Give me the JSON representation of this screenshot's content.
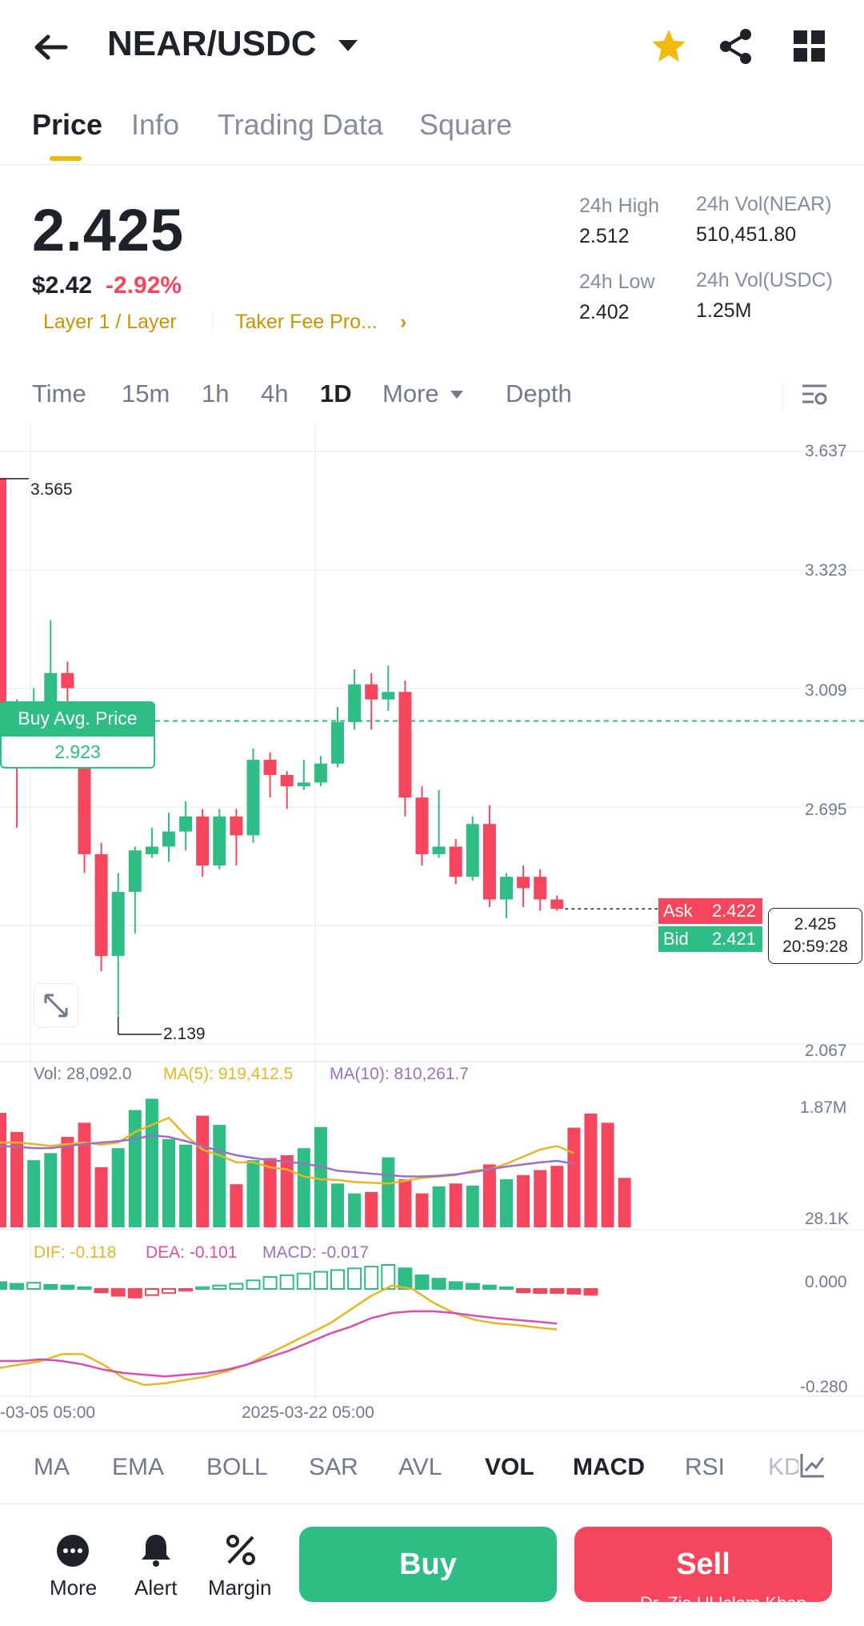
{
  "header": {
    "pair": "NEAR/USDC",
    "back_icon": "back-arrow-icon",
    "star_icon": "star-icon",
    "share_icon": "share-icon",
    "grid_icon": "grid-icon",
    "star_color": "#f0b90b"
  },
  "tabs": [
    {
      "label": "Price",
      "active": true
    },
    {
      "label": "Info",
      "active": false
    },
    {
      "label": "Trading Data",
      "active": false
    },
    {
      "label": "Square",
      "active": false
    }
  ],
  "ticker": {
    "price": "2.425",
    "usd_price": "$2.42",
    "change": "-2.92%",
    "tag1": "Layer 1 / Layer",
    "tag2": "Taker Fee Pro...",
    "tag_arrow": "›",
    "high_label": "24h High",
    "high": "2.512",
    "low_label": "24h Low",
    "low": "2.402",
    "vol_base_label": "24h Vol(NEAR)",
    "vol_base": "510,451.80",
    "vol_quote_label": "24h Vol(USDC)",
    "vol_quote": "1.25M"
  },
  "timeframes": [
    "Time",
    "15m",
    "1h",
    "4h",
    "1D",
    "More",
    "Depth"
  ],
  "timeframe_active": "1D",
  "chart_data": {
    "type": "candlestick",
    "y_ticks": [
      "3.637",
      "3.323",
      "3.009",
      "2.695",
      "2.067"
    ],
    "ylim": [
      2.067,
      3.637
    ],
    "high_marker": "3.565",
    "low_marker": "2.139",
    "buy_avg_label": "Buy Avg. Price",
    "buy_avg_value": "2.923",
    "ask_label": "Ask",
    "ask": "2.422",
    "bid_label": "Bid",
    "bid": "2.421",
    "current_price": "2.425",
    "countdown": "20:59:28",
    "x_labels": [
      "-03-05 05:00",
      "2025-03-22 05:00"
    ],
    "candles": [
      {
        "o": 3.565,
        "c": 2.95,
        "h": 3.565,
        "l": 2.82
      },
      {
        "o": 2.96,
        "c": 2.87,
        "h": 2.98,
        "l": 2.64
      },
      {
        "o": 2.87,
        "c": 2.92,
        "h": 3.01,
        "l": 2.86
      },
      {
        "o": 2.93,
        "c": 3.05,
        "h": 3.19,
        "l": 2.9
      },
      {
        "o": 3.05,
        "c": 3.01,
        "h": 3.08,
        "l": 2.94
      },
      {
        "o": 2.92,
        "c": 2.57,
        "h": 2.95,
        "l": 2.52
      },
      {
        "o": 2.57,
        "c": 2.3,
        "h": 2.6,
        "l": 2.26
      },
      {
        "o": 2.3,
        "c": 2.47,
        "h": 2.52,
        "l": 2.14
      },
      {
        "o": 2.47,
        "c": 2.58,
        "h": 2.59,
        "l": 2.36
      },
      {
        "o": 2.57,
        "c": 2.59,
        "h": 2.64,
        "l": 2.56
      },
      {
        "o": 2.59,
        "c": 2.63,
        "h": 2.68,
        "l": 2.55
      },
      {
        "o": 2.63,
        "c": 2.67,
        "h": 2.71,
        "l": 2.58
      },
      {
        "o": 2.67,
        "c": 2.54,
        "h": 2.69,
        "l": 2.51
      },
      {
        "o": 2.54,
        "c": 2.67,
        "h": 2.69,
        "l": 2.53
      },
      {
        "o": 2.67,
        "c": 2.62,
        "h": 2.69,
        "l": 2.54
      },
      {
        "o": 2.62,
        "c": 2.82,
        "h": 2.85,
        "l": 2.6
      },
      {
        "o": 2.82,
        "c": 2.78,
        "h": 2.84,
        "l": 2.72
      },
      {
        "o": 2.78,
        "c": 2.75,
        "h": 2.79,
        "l": 2.69
      },
      {
        "o": 2.75,
        "c": 2.76,
        "h": 2.82,
        "l": 2.74
      },
      {
        "o": 2.76,
        "c": 2.81,
        "h": 2.83,
        "l": 2.75
      },
      {
        "o": 2.81,
        "c": 2.92,
        "h": 2.96,
        "l": 2.8
      },
      {
        "o": 2.92,
        "c": 3.02,
        "h": 3.06,
        "l": 2.9
      },
      {
        "o": 3.02,
        "c": 2.98,
        "h": 3.05,
        "l": 2.9
      },
      {
        "o": 2.98,
        "c": 3.0,
        "h": 3.07,
        "l": 2.95
      },
      {
        "o": 3.0,
        "c": 2.72,
        "h": 3.03,
        "l": 2.67
      },
      {
        "o": 2.72,
        "c": 2.57,
        "h": 2.75,
        "l": 2.54
      },
      {
        "o": 2.57,
        "c": 2.59,
        "h": 2.74,
        "l": 2.56
      },
      {
        "o": 2.59,
        "c": 2.51,
        "h": 2.61,
        "l": 2.49
      },
      {
        "o": 2.51,
        "c": 2.65,
        "h": 2.67,
        "l": 2.5
      },
      {
        "o": 2.65,
        "c": 2.45,
        "h": 2.7,
        "l": 2.43
      },
      {
        "o": 2.45,
        "c": 2.51,
        "h": 2.52,
        "l": 2.4
      },
      {
        "o": 2.51,
        "c": 2.48,
        "h": 2.54,
        "l": 2.43
      },
      {
        "o": 2.51,
        "c": 2.45,
        "h": 2.53,
        "l": 2.42
      },
      {
        "o": 2.45,
        "c": 2.425,
        "h": 2.46,
        "l": 2.42
      }
    ]
  },
  "volume": {
    "vol_label": "Vol: 28,092.0",
    "ma5_label": "MA(5): 919,412.5",
    "ma10_label": "MA(10): 810,261.7",
    "y_top": "1.87M",
    "y_bottom": "28.1K",
    "ymax": 1.87,
    "bars": [
      1.62,
      1.35,
      0.95,
      1.05,
      1.28,
      1.48,
      0.85,
      1.12,
      1.66,
      1.82,
      1.25,
      1.17,
      1.58,
      1.45,
      0.61,
      0.95,
      0.98,
      1.02,
      1.12,
      1.42,
      0.62,
      0.48,
      0.5,
      0.99,
      0.68,
      0.48,
      0.58,
      0.62,
      0.59,
      0.89,
      0.68,
      0.74,
      0.81,
      0.87,
      1.41,
      1.61,
      1.48,
      0.7
    ],
    "ma5": [
      1.2,
      1.2,
      1.18,
      1.15,
      1.18,
      1.2,
      1.17,
      1.2,
      1.35,
      1.45,
      1.55,
      1.3,
      1.1,
      1.02,
      0.92,
      0.92,
      0.85,
      0.82,
      0.72,
      0.68,
      0.67,
      0.64,
      0.63,
      0.62,
      0.66,
      0.7,
      0.72,
      0.74,
      0.8,
      0.82,
      0.9,
      1.0,
      1.1,
      1.15,
      1.05
    ],
    "ma10": [
      1.15,
      1.14,
      1.12,
      1.12,
      1.15,
      1.18,
      1.2,
      1.22,
      1.25,
      1.3,
      1.28,
      1.22,
      1.15,
      1.08,
      1.02,
      0.98,
      0.95,
      0.93,
      0.9,
      0.86,
      0.8,
      0.78,
      0.76,
      0.74,
      0.72,
      0.72,
      0.73,
      0.75,
      0.78,
      0.82,
      0.86,
      0.89,
      0.92,
      0.94,
      0.9
    ]
  },
  "macd": {
    "dif_label": "DIF: -0.118",
    "dea_label": "DEA: -0.101",
    "macd_label": "MACD: -0.017",
    "y_top": "0.000",
    "y_bottom": "-0.280",
    "hist": [
      0.02,
      0.015,
      0.018,
      0.012,
      0.01,
      0.005,
      -0.01,
      -0.02,
      -0.025,
      -0.018,
      -0.012,
      -0.005,
      0.005,
      0.01,
      0.015,
      0.025,
      0.035,
      0.04,
      0.045,
      0.05,
      0.055,
      0.06,
      0.065,
      0.07,
      0.06,
      0.04,
      0.03,
      0.02,
      0.015,
      0.01,
      0.005,
      -0.01,
      -0.012,
      -0.012,
      -0.014,
      -0.017
    ],
    "dif": [
      -0.23,
      -0.22,
      -0.21,
      -0.19,
      -0.19,
      -0.22,
      -0.26,
      -0.28,
      -0.275,
      -0.265,
      -0.255,
      -0.24,
      -0.22,
      -0.19,
      -0.16,
      -0.13,
      -0.1,
      -0.06,
      -0.02,
      0.01,
      0.0,
      -0.04,
      -0.07,
      -0.09,
      -0.1,
      -0.105,
      -0.112,
      -0.118
    ],
    "dea": [
      -0.21,
      -0.21,
      -0.205,
      -0.21,
      -0.22,
      -0.235,
      -0.245,
      -0.25,
      -0.255,
      -0.25,
      -0.245,
      -0.235,
      -0.22,
      -0.2,
      -0.18,
      -0.155,
      -0.13,
      -0.11,
      -0.085,
      -0.07,
      -0.065,
      -0.065,
      -0.07,
      -0.078,
      -0.085,
      -0.09,
      -0.095,
      -0.101
    ]
  },
  "indicators": [
    "MA",
    "EMA",
    "BOLL",
    "SAR",
    "AVL",
    "VOL",
    "MACD",
    "RSI",
    "KD"
  ],
  "indicators_active": [
    "VOL",
    "MACD"
  ],
  "bottom": {
    "more_label": "More",
    "alert_label": "Alert",
    "margin_label": "Margin",
    "buy_label": "Buy",
    "sell_label": "Sell"
  },
  "watermark": "Dr. Zia Ul Islam Khan",
  "colors": {
    "up": "#2ebd85",
    "down": "#f6465d",
    "accent": "#f0b90b",
    "ma5": "#e8b623",
    "ma10": "#9b6fc4",
    "dea": "#d94fb0"
  }
}
